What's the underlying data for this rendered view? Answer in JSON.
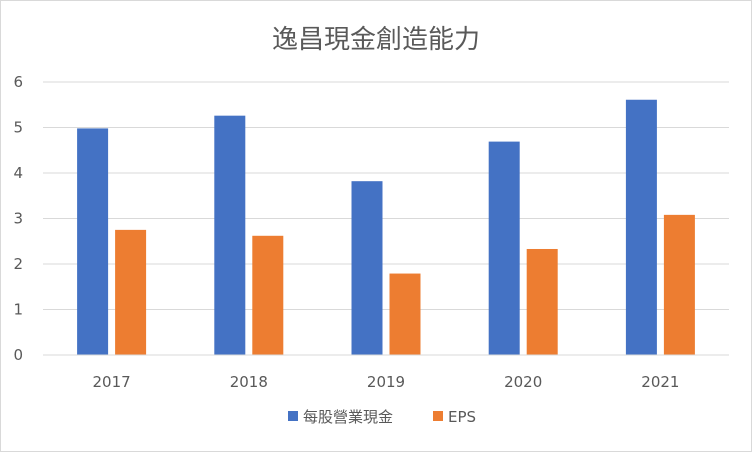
{
  "chart_data": {
    "type": "bar",
    "title": "逸昌現金創造能力",
    "categories": [
      "2017",
      "2018",
      "2019",
      "2020",
      "2021"
    ],
    "series": [
      {
        "name": "每股營業現金",
        "color": "#4472c4",
        "values": [
          4.98,
          5.26,
          3.82,
          4.69,
          5.61
        ]
      },
      {
        "name": "EPS",
        "color": "#ed7d31",
        "values": [
          2.75,
          2.62,
          1.79,
          2.33,
          3.08
        ]
      }
    ],
    "ylim": [
      0,
      6
    ],
    "yticks": [
      0,
      1,
      2,
      3,
      4,
      5,
      6
    ],
    "grid": true,
    "legend_position": "bottom"
  }
}
